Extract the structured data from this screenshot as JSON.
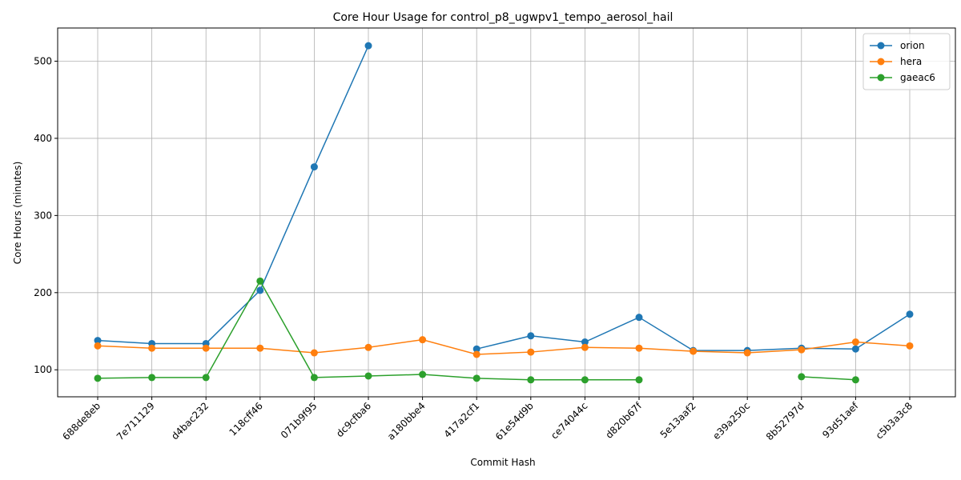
{
  "chart_data": {
    "type": "line",
    "title": "Core Hour Usage for control_p8_ugwpv1_tempo_aerosol_hail",
    "xlabel": "Commit Hash",
    "ylabel": "Core Hours (minutes)",
    "ylim": [
      65,
      543
    ],
    "yticks": [
      100,
      200,
      300,
      400,
      500
    ],
    "grid": true,
    "legend_position": "top-right",
    "categories": [
      "688de8eb",
      "7e711129",
      "d4bac232",
      "118cff46",
      "071b9f95",
      "dc9cfba6",
      "a180bbe4",
      "417a2cf1",
      "61e54d9b",
      "ce74044c",
      "d820b67f",
      "5e13aaf2",
      "e39a250c",
      "8b52797d",
      "93d51aef",
      "c5b3a3c8"
    ],
    "series": [
      {
        "name": "orion",
        "color": "#1f77b4",
        "values": [
          138,
          134,
          134,
          203,
          363,
          520,
          null,
          127,
          144,
          136,
          168,
          125,
          125,
          128,
          127,
          172
        ]
      },
      {
        "name": "hera",
        "color": "#ff7f0e",
        "values": [
          131,
          128,
          128,
          128,
          122,
          129,
          139,
          120,
          123,
          129,
          128,
          124,
          122,
          126,
          136,
          131
        ]
      },
      {
        "name": "gaeac6",
        "color": "#2ca02c",
        "values": [
          89,
          90,
          90,
          215,
          90,
          92,
          94,
          89,
          87,
          87,
          87,
          null,
          null,
          91,
          87,
          null
        ]
      }
    ]
  }
}
